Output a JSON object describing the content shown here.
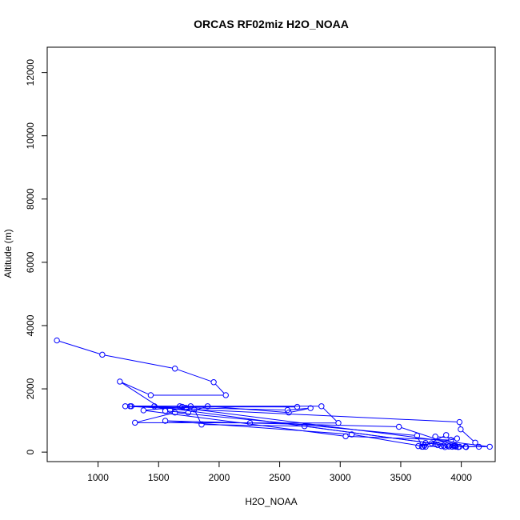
{
  "chart_data": {
    "type": "line",
    "title": "ORCAS RF02miz H2O_NOAA",
    "xlabel": "H2O_NOAA",
    "ylabel": "Altitude (m)",
    "xlim": [
      580,
      4280
    ],
    "ylim": [
      -300,
      12800
    ],
    "xticks": [
      1000,
      1500,
      2000,
      2500,
      3000,
      3500,
      4000
    ],
    "yticks": [
      0,
      2000,
      4000,
      6000,
      8000,
      10000,
      12000
    ],
    "grid": false,
    "series": [
      {
        "color": "#0000ff",
        "marker": "open-circle",
        "x": [
          660,
          1035,
          1635,
          1955,
          2055,
          1435,
          1180,
          1555,
          1745,
          1905,
          2575,
          2755,
          2565,
          1225,
          3985,
          3995,
          4115,
          4145,
          3855,
          3705,
          3095,
          1555,
          2255,
          3485,
          3985,
          4040,
          3950,
          3900,
          3865,
          3835,
          3805,
          3785,
          3755,
          1465,
          1275,
          2845,
          2985,
          1305,
          1635,
          3635,
          3675,
          3695,
          3645,
          3965,
          3785,
          3895,
          3925,
          3935,
          3945,
          3955,
          3975,
          4035,
          4235,
          1795,
          1855,
          2705,
          3885,
          3705,
          3685,
          3875,
          3915,
          3045,
          1375,
          1695,
          1765,
          1695,
          2645,
          1265,
          1675,
          1725,
          1595
        ],
        "y": [
          3530,
          3080,
          2640,
          2210,
          1800,
          1800,
          2230,
          1300,
          1250,
          1450,
          1250,
          1390,
          1330,
          1450,
          950,
          720,
          300,
          170,
          200,
          170,
          560,
          990,
          920,
          800,
          170,
          160,
          210,
          180,
          160,
          190,
          220,
          250,
          280,
          1450,
          1450,
          1450,
          920,
          930,
          1250,
          520,
          170,
          210,
          190,
          430,
          490,
          180,
          170,
          200,
          190,
          170,
          160,
          170,
          170,
          1350,
          870,
          820,
          210,
          290,
          170,
          540,
          380,
          500,
          1320,
          1430,
          1450,
          1430,
          1430,
          1450,
          1450,
          1400,
          1330
        ]
      }
    ]
  }
}
